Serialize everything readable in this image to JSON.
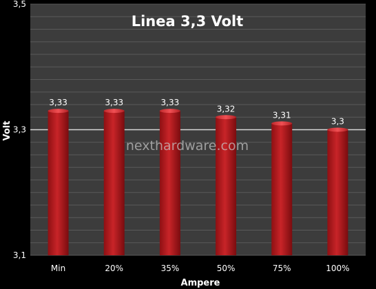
{
  "chart_data": {
    "type": "bar",
    "title": "Linea 3,3 Volt",
    "xlabel": "Ampere",
    "ylabel": "Volt",
    "categories": [
      "Min",
      "20%",
      "35%",
      "50%",
      "75%",
      "100%"
    ],
    "values": [
      3.33,
      3.33,
      3.33,
      3.32,
      3.31,
      3.3
    ],
    "value_labels": [
      "3,33",
      "3,33",
      "3,33",
      "3,32",
      "3,31",
      "3,3"
    ],
    "ylim": [
      3.1,
      3.5
    ],
    "yticks": [
      3.1,
      3.3,
      3.5
    ],
    "ytick_labels": [
      "3,1",
      "3,3",
      "3,5"
    ],
    "grid": true,
    "legend": "none",
    "watermark": "nexthardware.com",
    "colors": {
      "background": "#000000",
      "plot_area": "#3c3c3c",
      "gridline": "#5a5a5a",
      "highlight_line": "#d8d8d8",
      "bar": "#b41a1e",
      "bar_light": "#e0393d",
      "bar_dark": "#7a0c0f"
    }
  }
}
